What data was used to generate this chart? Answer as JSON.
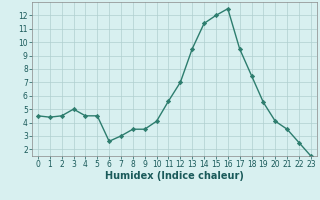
{
  "x": [
    0,
    1,
    2,
    3,
    4,
    5,
    6,
    7,
    8,
    9,
    10,
    11,
    12,
    13,
    14,
    15,
    16,
    17,
    18,
    19,
    20,
    21,
    22,
    23
  ],
  "y": [
    4.5,
    4.4,
    4.5,
    5.0,
    4.5,
    4.5,
    2.6,
    3.0,
    3.5,
    3.5,
    4.1,
    5.6,
    7.0,
    9.5,
    11.4,
    12.0,
    12.5,
    9.5,
    7.5,
    5.5,
    4.1,
    3.5,
    2.5,
    1.5
  ],
  "line_color": "#2d7d6e",
  "marker": "D",
  "marker_size": 2.2,
  "bg_color": "#d8f0f0",
  "grid_color": "#b0d0d0",
  "xlabel": "Humidex (Indice chaleur)",
  "xlim": [
    -0.5,
    23.5
  ],
  "ylim": [
    1.5,
    13.0
  ],
  "yticks": [
    2,
    3,
    4,
    5,
    6,
    7,
    8,
    9,
    10,
    11,
    12
  ],
  "xticks": [
    0,
    1,
    2,
    3,
    4,
    5,
    6,
    7,
    8,
    9,
    10,
    11,
    12,
    13,
    14,
    15,
    16,
    17,
    18,
    19,
    20,
    21,
    22,
    23
  ],
  "tick_fontsize": 5.5,
  "xlabel_fontsize": 7.0,
  "line_width": 1.0
}
